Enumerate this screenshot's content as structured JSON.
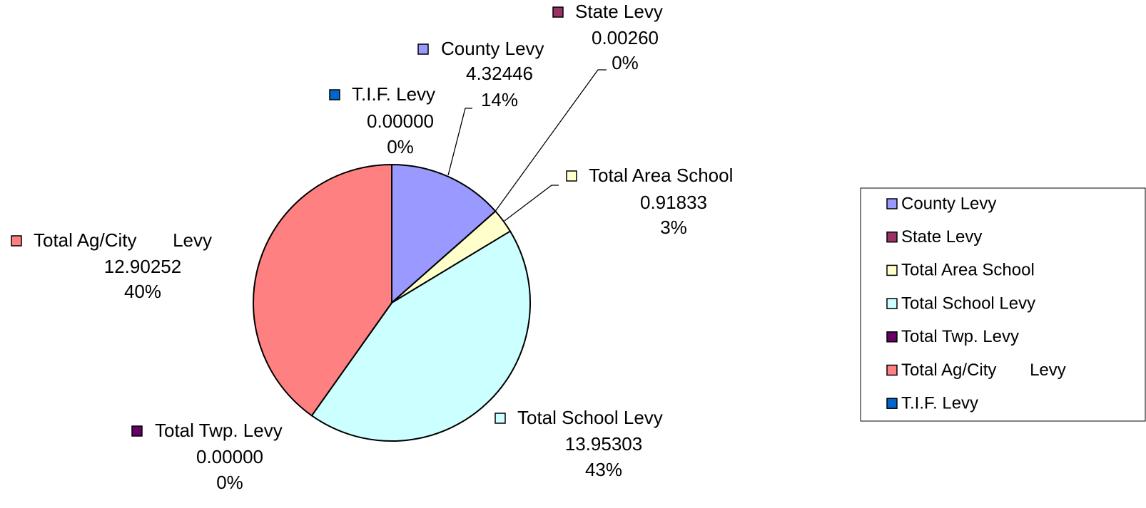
{
  "chart_data": {
    "type": "pie",
    "categories": [
      "County Levy",
      "State Levy",
      "Total Area School",
      "Total School Levy",
      "Total Twp. Levy",
      "Total Ag/City       Levy",
      "T.I.F. Levy"
    ],
    "values": [
      4.32446,
      0.0026,
      0.91833,
      13.95303,
      0,
      12.90252,
      0
    ],
    "value_labels": [
      "4.32446",
      "0.00260",
      "0.91833",
      "13.95303",
      "0.00000",
      "12.90252",
      "0.00000"
    ],
    "percent_labels": [
      "14%",
      "0%",
      "3%",
      "43%",
      "0%",
      "40%",
      "0%"
    ],
    "colors": [
      "#9999ff",
      "#993366",
      "#ffffcc",
      "#ccffff",
      "#660066",
      "#ff8080",
      "#0066cc"
    ],
    "legend": "right"
  }
}
